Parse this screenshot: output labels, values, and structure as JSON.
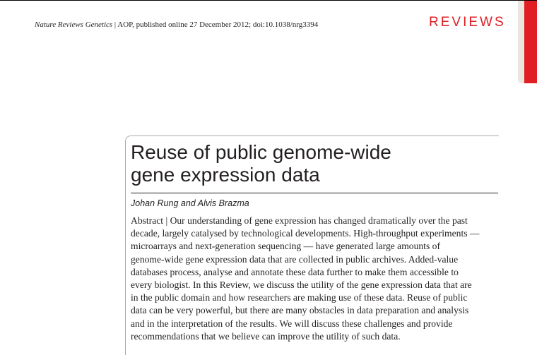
{
  "header": {
    "journal": "Nature Reviews Genetics",
    "separator": " | ",
    "info": "AOP, published online 27 December 2012; doi:10.1038/nrg3394",
    "section": "REVIEWS"
  },
  "colors": {
    "accent": "#e01e24",
    "tab": "#ece6e0"
  },
  "article": {
    "title_lines": [
      "Reuse of public genome-wide",
      "gene expression data"
    ],
    "authors": "Johan Rung and Alvis Brazma",
    "abstract_lines": [
      "Abstract | Our understanding of gene expression has changed dramatically over the past",
      "decade, largely catalysed by technological developments. High-throughput experiments —",
      "microarrays and next-generation sequencing — have generated large amounts of",
      "genome-wide gene expression data that are collected in public archives. Added-value",
      "databases process, analyse and annotate these data further to make them accessible to",
      "every biologist. In this Review, we discuss the utility of the gene expression data that are",
      "in the public domain and how researchers are making use of these data. Reuse of public",
      "data can be very powerful, but there are many obstacles in data preparation and analysis",
      "and in the interpretation of the results. We will discuss these challenges and provide",
      "recommendations that we believe can improve the utility of such data."
    ]
  }
}
